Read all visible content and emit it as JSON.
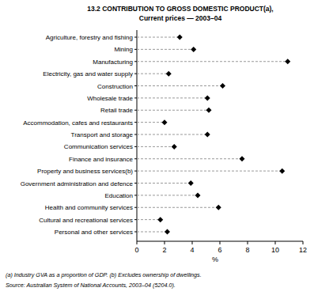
{
  "chart_data": {
    "type": "dot",
    "orientation": "horizontal",
    "title": "13.2  CONTRIBUTION TO GROSS DOMESTIC PRODUCT(a),",
    "subtitle": "Current prices — 2003–04",
    "x_label": "%",
    "categories": [
      "Agriculture, forestry and fishing",
      "Mining",
      "Manufacturing",
      "Electricity, gas and water supply",
      "Construction",
      "Wholesale trade",
      "Retail trade",
      "Accommodation, cafes and restaurants",
      "Transport and storage",
      "Communication services",
      "Finance and insurance",
      "Property and business services(b)",
      "Government administration and defence",
      "Education",
      "Health and community services",
      "Cultural and recreational services",
      "Personal and other services"
    ],
    "values": [
      3.1,
      4.1,
      10.9,
      2.3,
      6.2,
      5.1,
      5.2,
      2.0,
      5.1,
      2.7,
      7.6,
      10.5,
      3.9,
      4.4,
      5.9,
      1.7,
      2.2
    ],
    "color": "#000000",
    "marker": "diamond",
    "line_style": "dashed",
    "xlim": [
      0,
      12
    ],
    "xticks": [
      0,
      2,
      4,
      6,
      8,
      10,
      12
    ],
    "grid": false,
    "annotations": [
      "(a) Industry GVA as a proportion of GDP. (b) Excludes ownership of dwellings.",
      "Source: Australian System of National Accounts, 2003–04 (5204.0)."
    ]
  }
}
